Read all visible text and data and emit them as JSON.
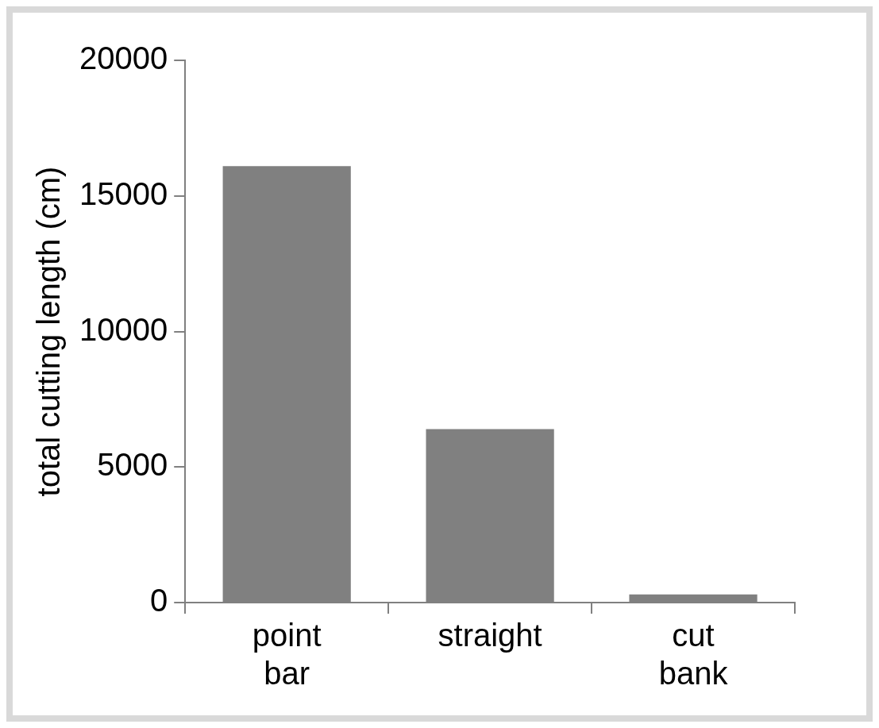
{
  "chart_data": {
    "type": "bar",
    "ylabel": "total cutting length (cm)",
    "categories": [
      "point bar",
      "straight",
      "cut bank"
    ],
    "values": [
      16100,
      6400,
      300
    ],
    "color": "#808080",
    "ylim": [
      0,
      20000
    ],
    "yticks": [
      0,
      5000,
      10000,
      15000,
      20000
    ],
    "grid": false,
    "legend": false
  }
}
